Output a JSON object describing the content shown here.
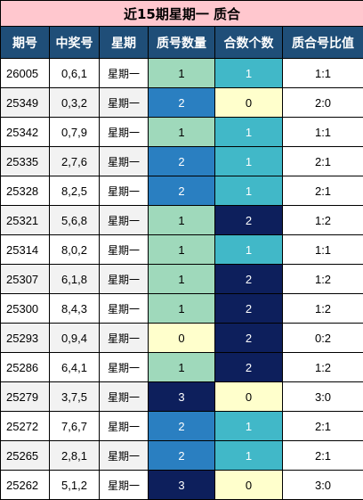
{
  "title": "近15期星期一 质合",
  "headers": [
    "期号",
    "中奖号",
    "星期",
    "质号数量",
    "合数个数",
    "质合号比值"
  ],
  "rows": [
    {
      "issue": "26005",
      "draw": "0,6,1",
      "weekday": "星期一",
      "prime": "1",
      "composite": "1",
      "ratio": "1:1"
    },
    {
      "issue": "25349",
      "draw": "0,3,2",
      "weekday": "星期一",
      "prime": "2",
      "composite": "0",
      "ratio": "2:0"
    },
    {
      "issue": "25342",
      "draw": "0,7,9",
      "weekday": "星期一",
      "prime": "1",
      "composite": "1",
      "ratio": "1:1"
    },
    {
      "issue": "25335",
      "draw": "2,7,6",
      "weekday": "星期一",
      "prime": "2",
      "composite": "1",
      "ratio": "2:1"
    },
    {
      "issue": "25328",
      "draw": "8,2,5",
      "weekday": "星期一",
      "prime": "2",
      "composite": "1",
      "ratio": "2:1"
    },
    {
      "issue": "25321",
      "draw": "5,6,8",
      "weekday": "星期一",
      "prime": "1",
      "composite": "2",
      "ratio": "1:2"
    },
    {
      "issue": "25314",
      "draw": "8,0,2",
      "weekday": "星期一",
      "prime": "1",
      "composite": "1",
      "ratio": "1:1"
    },
    {
      "issue": "25307",
      "draw": "6,1,8",
      "weekday": "星期一",
      "prime": "1",
      "composite": "2",
      "ratio": "1:2"
    },
    {
      "issue": "25300",
      "draw": "8,4,3",
      "weekday": "星期一",
      "prime": "1",
      "composite": "2",
      "ratio": "1:2"
    },
    {
      "issue": "25293",
      "draw": "0,9,4",
      "weekday": "星期一",
      "prime": "0",
      "composite": "2",
      "ratio": "0:2"
    },
    {
      "issue": "25286",
      "draw": "6,4,1",
      "weekday": "星期一",
      "prime": "1",
      "composite": "2",
      "ratio": "1:2"
    },
    {
      "issue": "25279",
      "draw": "3,7,5",
      "weekday": "星期一",
      "prime": "3",
      "composite": "0",
      "ratio": "3:0"
    },
    {
      "issue": "25272",
      "draw": "7,6,7",
      "weekday": "星期一",
      "prime": "2",
      "composite": "1",
      "ratio": "2:1"
    },
    {
      "issue": "25265",
      "draw": "2,8,1",
      "weekday": "星期一",
      "prime": "2",
      "composite": "1",
      "ratio": "2:1"
    },
    {
      "issue": "25262",
      "draw": "5,1,2",
      "weekday": "星期一",
      "prime": "3",
      "composite": "0",
      "ratio": "3:0"
    }
  ],
  "colors": {
    "title_bg": "#ffc7ce",
    "header_bg": "#1f4e78",
    "prime_0": "#ffffcc",
    "prime_1": "#9fd9bb",
    "prime_2": "#2a7fc1",
    "prime_3": "#0d1f5c",
    "composite_0": "#ffffcc",
    "composite_1": "#41b8c8",
    "composite_2": "#0d1f5c"
  }
}
